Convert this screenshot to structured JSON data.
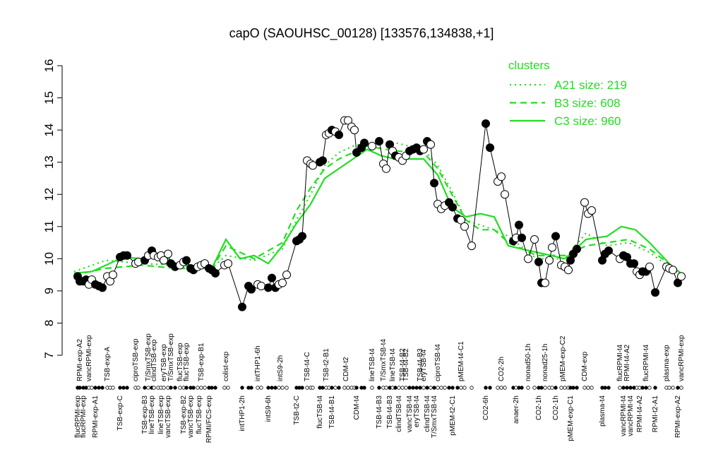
{
  "chart_data": {
    "type": "expression-profile",
    "title": "capO (SAOUHSC_00128) [133576,134838,+1]",
    "xlim": [
      0,
      875
    ],
    "ylim": [
      7,
      16
    ],
    "yticks": [
      7,
      8,
      9,
      10,
      11,
      12,
      13,
      14,
      15,
      16
    ],
    "legend_title": "clusters",
    "legend_color": "#22dd22",
    "point_line_color": "#000000",
    "points": {
      "x": [
        10,
        13,
        18,
        22,
        26,
        30,
        35,
        40,
        45,
        52,
        56,
        60,
        70,
        75,
        80,
        92,
        96,
        105,
        110,
        115,
        118,
        124,
        128,
        132,
        138,
        142,
        148,
        155,
        160,
        164,
        170,
        174,
        180,
        185,
        190,
        196,
        200,
        205,
        218,
        223,
        243,
        252,
        256,
        265,
        270,
        280,
        285,
        290,
        295,
        300,
        306,
        320,
        324,
        328,
        335,
        340,
        343,
        353,
        357,
        362,
        366,
        370,
        375,
        380,
        388,
        393,
        398,
        402,
        405,
        412,
        416,
        427,
        437,
        443,
        447,
        452,
        456,
        460,
        465,
        470,
        475,
        480,
        485,
        490,
        495,
        500,
        505,
        510,
        515,
        520,
        525,
        530,
        536,
        541,
        548,
        553,
        558,
        568,
        588,
        594,
        605,
        610,
        615,
        627,
        631,
        635,
        639,
        648,
        657,
        663,
        667,
        672,
        678,
        682,
        687,
        695,
        700,
        705,
        708,
        712,
        717,
        728,
        733,
        738,
        753,
        757,
        762,
        778,
        783,
        788,
        793,
        798,
        802,
        806,
        810,
        815,
        820,
        828,
        844,
        848,
        853,
        860,
        865
      ],
      "values": [
        9.45,
        9.3,
        9.3,
        9.35,
        9.2,
        9.35,
        9.2,
        9.15,
        9.1,
        9.45,
        9.3,
        9.5,
        10.05,
        10.1,
        10.1,
        9.85,
        9.9,
        9.95,
        10.1,
        10.25,
        10.1,
        10.05,
        10.1,
        9.95,
        10.15,
        9.85,
        9.75,
        9.8,
        9.9,
        9.95,
        9.7,
        9.65,
        9.75,
        9.8,
        9.85,
        9.7,
        9.65,
        9.55,
        9.8,
        9.85,
        8.5,
        9.15,
        9.05,
        9.2,
        9.15,
        9.1,
        9.4,
        9.1,
        9.2,
        9.25,
        9.5,
        10.55,
        10.6,
        10.7,
        13.05,
        12.95,
        12.9,
        13.0,
        13.05,
        13.85,
        13.9,
        14.0,
        13.95,
        13.85,
        14.3,
        14.3,
        14.1,
        14.0,
        13.3,
        13.45,
        13.6,
        13.5,
        13.65,
        12.95,
        12.8,
        13.55,
        13.35,
        13.2,
        13.15,
        13.05,
        13.2,
        13.35,
        13.4,
        13.45,
        13.35,
        13.4,
        13.65,
        13.55,
        12.35,
        11.7,
        11.55,
        11.65,
        11.75,
        11.6,
        11.25,
        11.2,
        11.0,
        10.4,
        14.2,
        13.45,
        12.4,
        12.55,
        12.0,
        10.55,
        10.65,
        11.05,
        10.65,
        10.0,
        10.6,
        9.9,
        9.25,
        9.25,
        9.95,
        10.35,
        10.7,
        9.8,
        9.75,
        9.65,
        9.95,
        10.15,
        10.3,
        11.75,
        11.4,
        11.5,
        9.95,
        10.15,
        10.25,
        10.0,
        10.1,
        10.05,
        9.85,
        9.85,
        9.6,
        9.5,
        9.6,
        9.6,
        9.75,
        8.95,
        9.75,
        9.7,
        9.65,
        9.25,
        9.45
      ],
      "filled": [
        true,
        true,
        true,
        true,
        false,
        false,
        true,
        true,
        true,
        false,
        false,
        false,
        true,
        true,
        true,
        false,
        false,
        true,
        false,
        true,
        false,
        false,
        false,
        false,
        false,
        true,
        true,
        false,
        false,
        true,
        true,
        true,
        false,
        false,
        false,
        true,
        true,
        true,
        false,
        false,
        true,
        true,
        true,
        false,
        false,
        true,
        true,
        true,
        false,
        false,
        false,
        true,
        true,
        true,
        false,
        false,
        false,
        true,
        true,
        false,
        false,
        true,
        false,
        true,
        false,
        false,
        false,
        false,
        true,
        true,
        true,
        false,
        true,
        false,
        false,
        true,
        false,
        true,
        false,
        false,
        false,
        true,
        true,
        true,
        true,
        false,
        true,
        false,
        true,
        false,
        false,
        false,
        true,
        true,
        true,
        false,
        false,
        false,
        true,
        true,
        false,
        false,
        false,
        true,
        false,
        true,
        true,
        false,
        false,
        true,
        true,
        false,
        false,
        false,
        true,
        false,
        false,
        false,
        true,
        true,
        true,
        false,
        false,
        false,
        true,
        true,
        true,
        false,
        true,
        true,
        true,
        true,
        false,
        false,
        true,
        true,
        false,
        true,
        false,
        false,
        false,
        true,
        false
      ]
    },
    "series": [
      {
        "name": "A21 size: 219",
        "style": "dotted",
        "color": "#22dd22",
        "x": [
          5,
          50,
          100,
          150,
          200,
          220,
          260,
          300,
          320,
          340,
          360,
          380,
          400,
          420,
          460,
          500,
          520,
          540,
          560,
          600,
          620,
          660,
          700,
          730,
          760,
          790,
          820,
          850,
          870
        ],
        "values": [
          9.6,
          9.95,
          9.85,
          9.8,
          9.7,
          10.1,
          9.95,
          10.3,
          11.2,
          12.0,
          12.9,
          13.3,
          13.5,
          13.6,
          13.6,
          13.4,
          12.9,
          12.1,
          11.2,
          10.9,
          10.7,
          10.0,
          10.0,
          10.8,
          10.4,
          10.5,
          10.2,
          9.7,
          9.45
        ]
      },
      {
        "name": "B3 size: 608",
        "style": "dashed",
        "color": "#22dd22",
        "x": [
          5,
          50,
          100,
          150,
          200,
          220,
          260,
          300,
          320,
          340,
          360,
          380,
          400,
          420,
          460,
          500,
          520,
          540,
          560,
          580,
          600,
          620,
          660,
          700,
          730,
          760,
          790,
          820,
          850,
          870
        ],
        "values": [
          9.5,
          9.7,
          9.8,
          9.7,
          9.7,
          10.4,
          10.0,
          10.5,
          11.5,
          12.2,
          12.8,
          13.1,
          13.3,
          13.5,
          13.35,
          13.3,
          12.8,
          12.0,
          11.2,
          10.9,
          10.9,
          10.5,
          10.1,
          10.1,
          10.4,
          10.5,
          10.6,
          10.3,
          9.8,
          9.45
        ]
      },
      {
        "name": "C3 size: 960",
        "style": "solid",
        "color": "#22dd22",
        "x": [
          5,
          30,
          50,
          75,
          100,
          120,
          150,
          170,
          200,
          220,
          240,
          260,
          280,
          300,
          320,
          340,
          360,
          380,
          400,
          420,
          440,
          460,
          500,
          520,
          540,
          560,
          580,
          600,
          620,
          640,
          660,
          700,
          730,
          760,
          780,
          800,
          820,
          850,
          870
        ],
        "values": [
          9.55,
          9.6,
          9.8,
          10.05,
          10.0,
          10.2,
          9.85,
          9.8,
          9.7,
          10.6,
          10.0,
          10.1,
          9.85,
          10.4,
          11.1,
          11.7,
          12.5,
          12.8,
          13.1,
          13.4,
          13.2,
          13.1,
          13.1,
          12.6,
          11.6,
          11.3,
          11.4,
          11.3,
          10.4,
          10.3,
          10.2,
          10.0,
          10.6,
          10.7,
          11.0,
          10.9,
          10.5,
          9.8,
          9.45
        ]
      }
    ],
    "top_labels": {
      "x": [
        13,
        26,
        52,
        92,
        110,
        118,
        132,
        142,
        155,
        164,
        185,
        220,
        265,
        297,
        335,
        362,
        390,
        427,
        443,
        456,
        470,
        475,
        495,
        500,
        520,
        553,
        610,
        648,
        672,
        697,
        728,
        778,
        788,
        815,
        844,
        865
      ],
      "labels": [
        "RPMI-exp-A2",
        "vancRPMI-exp",
        "TSB-exp-A",
        "ciproTSB-exp",
        "T/SmxTSB-exp",
        "clindTSB-exp",
        "eryTSB-exp",
        "T/SmxTSB-exp",
        "flucTSB-exp",
        "flucTSB-exp",
        "TSB-exp-B1",
        "colist-exp",
        "intTHP1-6h",
        "intS9-2h",
        "TSB-t4-C",
        "TSB-t2-B1",
        "CDM-t2",
        "lineTSB-t4",
        "T/SmxTSB-t4",
        "lineTSB-t4",
        "TSB-t4-B2",
        "TSB-t4-B2",
        "TSB-t4-B3",
        "eryTSB-t4",
        "ciproTSB-t4",
        "pMEM-t4-C1",
        "CO2-2h",
        "nonad50-1h",
        "nonad25-1h",
        "pMEM-exp-C2",
        "CDM-exp",
        "flucRPMI-t4",
        "RPMI-t4-A2",
        "flucRPMI-t4",
        "plasma-exp",
        "vancRPMI-exp"
      ]
    },
    "bottom_labels": {
      "x": [
        10,
        18,
        35,
        70,
        105,
        115,
        128,
        138,
        160,
        170,
        182,
        196,
        243,
        280,
        320,
        353,
        370,
        405,
        437,
        452,
        465,
        480,
        490,
        505,
        515,
        541,
        588,
        631,
        663,
        687,
        708,
        753,
        783,
        793,
        806,
        828,
        860
      ],
      "labels": [
        "flucRPMI-exp",
        "flucRPMI-exp",
        "RPMI-exp-A1",
        "TSB-exp-C",
        "TSB-exp-B3",
        "lineTSB-exp",
        "lineTSB-exp",
        "vancTSB-exp",
        "TSB-exp-B2",
        "vancTSB-exp",
        "flucTSB-exp",
        "RPMI/FCS-exp",
        "intTHP1-2h",
        "intS9-6h",
        "TSB-t2-C",
        "flucTSB-t4",
        "TSB-t4-B1",
        "CDM-t4",
        "TSB-t4-B3",
        "TSB-t4-B3",
        "clindTSB-t4",
        "vancTSB-t4",
        "eryTSB-t4",
        "clindTSB-t4",
        "T/SmxTSB-t4",
        "pMEM-t2-C1",
        "CO2-6h",
        "anaer-2h",
        "CO2-1h",
        "CO2-1h",
        "pMEM-exp-C1",
        "plasma-t4",
        "vancRPMI-t4",
        "vancRPMI-t4",
        "RPMI-t4-A2",
        "RPMI-t2-A1",
        "RPMI-exp-A2"
      ]
    }
  }
}
